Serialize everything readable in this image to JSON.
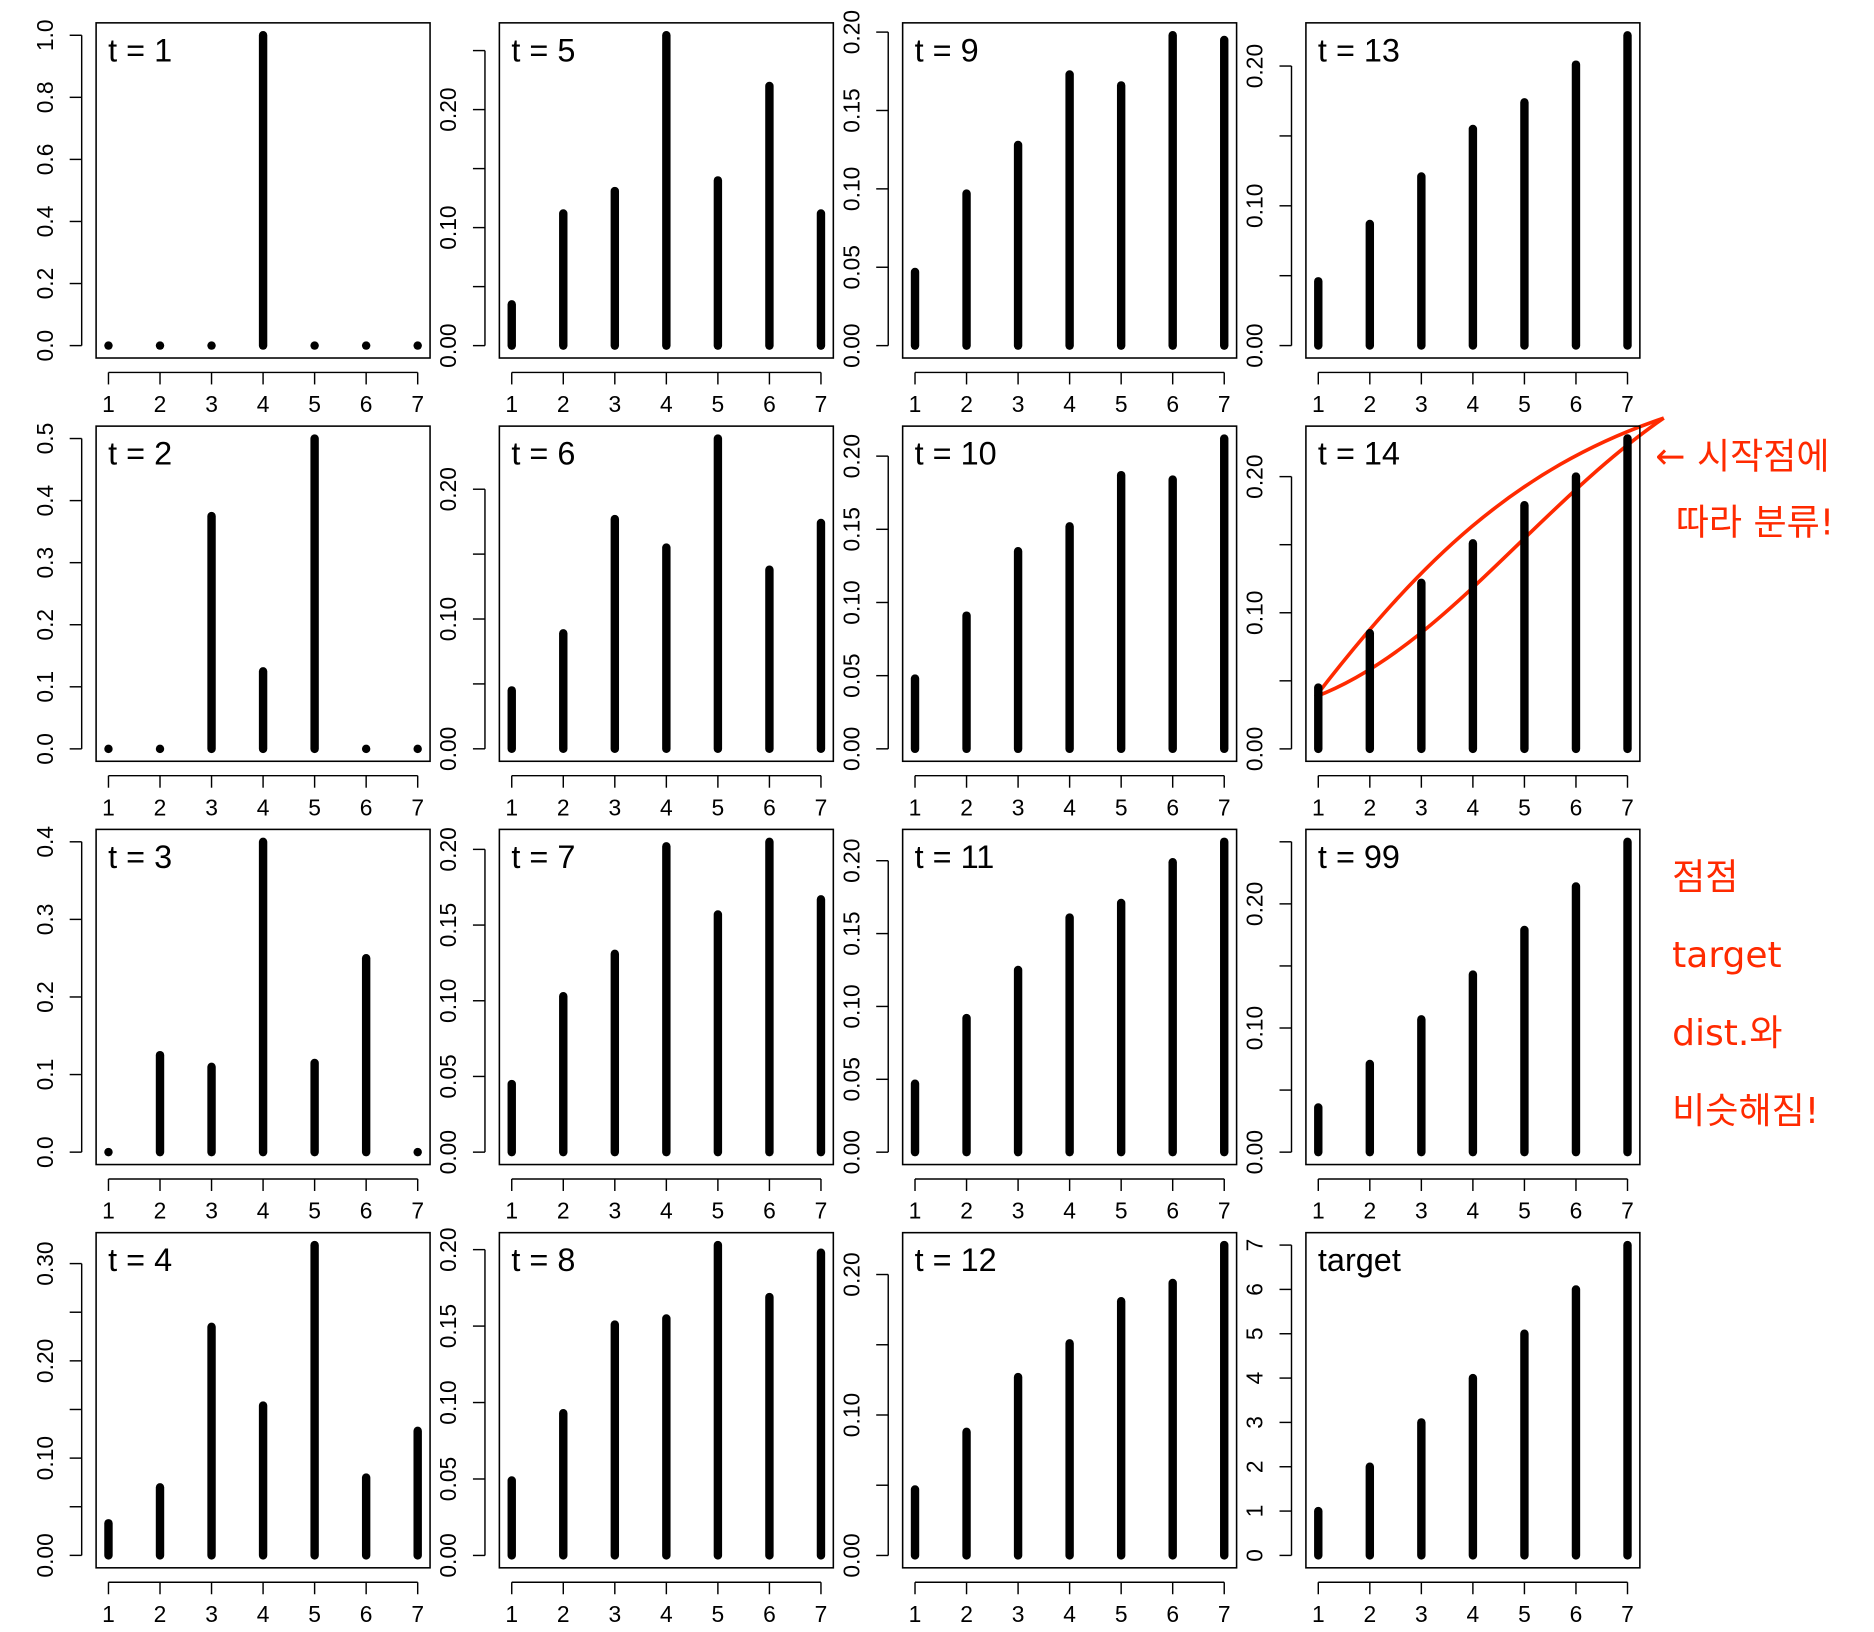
{
  "chart_data": [
    {
      "type": "bar",
      "title": "t = 1",
      "x": [
        1,
        2,
        3,
        4,
        5,
        6,
        7
      ],
      "values": [
        0,
        0,
        0,
        1,
        0,
        0,
        0
      ],
      "color": "#000000",
      "xlim": [
        0.76,
        7.24
      ],
      "xticks": [
        1,
        2,
        3,
        4,
        5,
        6,
        7
      ],
      "ylim": [
        -0.04,
        1.04
      ],
      "yticks": [
        {
          "value": 0,
          "label": "0.0"
        },
        {
          "value": 0.2,
          "label": "0.2"
        },
        {
          "value": 0.4,
          "label": "0.4"
        },
        {
          "value": 0.6,
          "label": "0.6"
        },
        {
          "value": 0.8,
          "label": "0.8"
        },
        {
          "value": 1,
          "label": "1.0"
        }
      ],
      "yminorticks": []
    },
    {
      "type": "bar",
      "title": "t = 2",
      "x": [
        1,
        2,
        3,
        4,
        5,
        6,
        7
      ],
      "values": [
        0,
        0,
        0.375,
        0.125,
        0.5,
        0,
        0
      ],
      "color": "#000000",
      "xlim": [
        0.76,
        7.24
      ],
      "xticks": [
        1,
        2,
        3,
        4,
        5,
        6,
        7
      ],
      "ylim": [
        -0.02,
        0.52
      ],
      "yticks": [
        {
          "value": 0,
          "label": "0.0"
        },
        {
          "value": 0.1,
          "label": "0.1"
        },
        {
          "value": 0.2,
          "label": "0.2"
        },
        {
          "value": 0.3,
          "label": "0.3"
        },
        {
          "value": 0.4,
          "label": "0.4"
        },
        {
          "value": 0.5,
          "label": "0.5"
        }
      ],
      "yminorticks": []
    },
    {
      "type": "bar",
      "title": "t = 3",
      "x": [
        1,
        2,
        3,
        4,
        5,
        6,
        7
      ],
      "values": [
        0,
        0.125,
        0.11,
        0.4,
        0.115,
        0.25,
        0
      ],
      "color": "#000000",
      "xlim": [
        0.76,
        7.24
      ],
      "xticks": [
        1,
        2,
        3,
        4,
        5,
        6,
        7
      ],
      "ylim": [
        -0.016,
        0.416
      ],
      "yticks": [
        {
          "value": 0,
          "label": "0.0"
        },
        {
          "value": 0.1,
          "label": "0.1"
        },
        {
          "value": 0.2,
          "label": "0.2"
        },
        {
          "value": 0.3,
          "label": "0.3"
        },
        {
          "value": 0.4,
          "label": "0.4"
        }
      ],
      "yminorticks": []
    },
    {
      "type": "bar",
      "title": "t = 4",
      "x": [
        1,
        2,
        3,
        4,
        5,
        6,
        7
      ],
      "values": [
        0.033,
        0.07,
        0.235,
        0.154,
        0.319,
        0.08,
        0.128
      ],
      "color": "#000000",
      "xlim": [
        0.76,
        7.24
      ],
      "xticks": [
        1,
        2,
        3,
        4,
        5,
        6,
        7
      ],
      "ylim": [
        -0.0128,
        0.3318
      ],
      "yticks": [
        {
          "value": 0,
          "label": "0.00"
        },
        {
          "value": 0.1,
          "label": "0.10"
        },
        {
          "value": 0.2,
          "label": "0.20"
        },
        {
          "value": 0.3,
          "label": "0.30"
        }
      ],
      "yminorticks": [
        0.05,
        0.15,
        0.25
      ]
    },
    {
      "type": "bar",
      "title": "t = 5",
      "x": [
        1,
        2,
        3,
        4,
        5,
        6,
        7
      ],
      "values": [
        0.035,
        0.112,
        0.131,
        0.263,
        0.14,
        0.22,
        0.112
      ],
      "color": "#000000",
      "xlim": [
        0.76,
        7.24
      ],
      "xticks": [
        1,
        2,
        3,
        4,
        5,
        6,
        7
      ],
      "ylim": [
        -0.0105,
        0.2735
      ],
      "yticks": [
        {
          "value": 0,
          "label": "0.00"
        },
        {
          "value": 0.1,
          "label": "0.10"
        },
        {
          "value": 0.2,
          "label": "0.20"
        }
      ],
      "yminorticks": [
        0.05,
        0.15,
        0.25
      ]
    },
    {
      "type": "bar",
      "title": "t = 6",
      "x": [
        1,
        2,
        3,
        4,
        5,
        6,
        7
      ],
      "values": [
        0.045,
        0.089,
        0.177,
        0.155,
        0.239,
        0.138,
        0.174
      ],
      "color": "#000000",
      "xlim": [
        0.76,
        7.24
      ],
      "xticks": [
        1,
        2,
        3,
        4,
        5,
        6,
        7
      ],
      "ylim": [
        -0.0096,
        0.2486
      ],
      "yticks": [
        {
          "value": 0,
          "label": "0.00"
        },
        {
          "value": 0.1,
          "label": "0.10"
        },
        {
          "value": 0.2,
          "label": "0.20"
        }
      ],
      "yminorticks": [
        0.05,
        0.15
      ]
    },
    {
      "type": "bar",
      "title": "t = 7",
      "x": [
        1,
        2,
        3,
        4,
        5,
        6,
        7
      ],
      "values": [
        0.045,
        0.103,
        0.131,
        0.202,
        0.157,
        0.205,
        0.167
      ],
      "color": "#000000",
      "xlim": [
        0.76,
        7.24
      ],
      "xticks": [
        1,
        2,
        3,
        4,
        5,
        6,
        7
      ],
      "ylim": [
        -0.0082,
        0.2132
      ],
      "yticks": [
        {
          "value": 0,
          "label": "0.00"
        },
        {
          "value": 0.05,
          "label": "0.05"
        },
        {
          "value": 0.1,
          "label": "0.10"
        },
        {
          "value": 0.15,
          "label": "0.15"
        },
        {
          "value": 0.2,
          "label": "0.20"
        }
      ],
      "yminorticks": []
    },
    {
      "type": "bar",
      "title": "t = 8",
      "x": [
        1,
        2,
        3,
        4,
        5,
        6,
        7
      ],
      "values": [
        0.049,
        0.093,
        0.151,
        0.155,
        0.203,
        0.169,
        0.198
      ],
      "color": "#000000",
      "xlim": [
        0.76,
        7.24
      ],
      "xticks": [
        1,
        2,
        3,
        4,
        5,
        6,
        7
      ],
      "ylim": [
        -0.0081,
        0.2111
      ],
      "yticks": [
        {
          "value": 0,
          "label": "0.00"
        },
        {
          "value": 0.05,
          "label": "0.05"
        },
        {
          "value": 0.1,
          "label": "0.10"
        },
        {
          "value": 0.15,
          "label": "0.15"
        },
        {
          "value": 0.2,
          "label": "0.20"
        }
      ],
      "yminorticks": []
    },
    {
      "type": "bar",
      "title": "t = 9",
      "x": [
        1,
        2,
        3,
        4,
        5,
        6,
        7
      ],
      "values": [
        0.047,
        0.097,
        0.128,
        0.173,
        0.166,
        0.198,
        0.195
      ],
      "color": "#000000",
      "xlim": [
        0.76,
        7.24
      ],
      "xticks": [
        1,
        2,
        3,
        4,
        5,
        6,
        7
      ],
      "ylim": [
        -0.0079,
        0.2059
      ],
      "yticks": [
        {
          "value": 0,
          "label": "0.00"
        },
        {
          "value": 0.05,
          "label": "0.05"
        },
        {
          "value": 0.1,
          "label": "0.10"
        },
        {
          "value": 0.15,
          "label": "0.15"
        },
        {
          "value": 0.2,
          "label": "0.20"
        }
      ],
      "yminorticks": []
    },
    {
      "type": "bar",
      "title": "t = 10",
      "x": [
        1,
        2,
        3,
        4,
        5,
        6,
        7
      ],
      "values": [
        0.048,
        0.091,
        0.135,
        0.152,
        0.187,
        0.184,
        0.212
      ],
      "color": "#000000",
      "xlim": [
        0.76,
        7.24
      ],
      "xticks": [
        1,
        2,
        3,
        4,
        5,
        6,
        7
      ],
      "ylim": [
        -0.0085,
        0.2205
      ],
      "yticks": [
        {
          "value": 0,
          "label": "0.00"
        },
        {
          "value": 0.05,
          "label": "0.05"
        },
        {
          "value": 0.1,
          "label": "0.10"
        },
        {
          "value": 0.15,
          "label": "0.15"
        },
        {
          "value": 0.2,
          "label": "0.20"
        }
      ],
      "yminorticks": []
    },
    {
      "type": "bar",
      "title": "t = 11",
      "x": [
        1,
        2,
        3,
        4,
        5,
        6,
        7
      ],
      "values": [
        0.047,
        0.092,
        0.125,
        0.161,
        0.171,
        0.199,
        0.213
      ],
      "color": "#000000",
      "xlim": [
        0.76,
        7.24
      ],
      "xticks": [
        1,
        2,
        3,
        4,
        5,
        6,
        7
      ],
      "ylim": [
        -0.0085,
        0.2215
      ],
      "yticks": [
        {
          "value": 0,
          "label": "0.00"
        },
        {
          "value": 0.05,
          "label": "0.05"
        },
        {
          "value": 0.1,
          "label": "0.10"
        },
        {
          "value": 0.15,
          "label": "0.15"
        },
        {
          "value": 0.2,
          "label": "0.20"
        }
      ],
      "yminorticks": []
    },
    {
      "type": "bar",
      "title": "t = 12",
      "x": [
        1,
        2,
        3,
        4,
        5,
        6,
        7
      ],
      "values": [
        0.047,
        0.088,
        0.127,
        0.151,
        0.181,
        0.194,
        0.221
      ],
      "color": "#000000",
      "xlim": [
        0.76,
        7.24
      ],
      "xticks": [
        1,
        2,
        3,
        4,
        5,
        6,
        7
      ],
      "ylim": [
        -0.0088,
        0.2298
      ],
      "yticks": [
        {
          "value": 0,
          "label": "0.00"
        },
        {
          "value": 0.1,
          "label": "0.10"
        },
        {
          "value": 0.2,
          "label": "0.20"
        }
      ],
      "yminorticks": [
        0.05,
        0.15
      ]
    },
    {
      "type": "bar",
      "title": "t = 13",
      "x": [
        1,
        2,
        3,
        4,
        5,
        6,
        7
      ],
      "values": [
        0.046,
        0.087,
        0.121,
        0.155,
        0.174,
        0.201,
        0.222
      ],
      "color": "#000000",
      "xlim": [
        0.76,
        7.24
      ],
      "xticks": [
        1,
        2,
        3,
        4,
        5,
        6,
        7
      ],
      "ylim": [
        -0.0089,
        0.2309
      ],
      "yticks": [
        {
          "value": 0,
          "label": "0.00"
        },
        {
          "value": 0.1,
          "label": "0.10"
        },
        {
          "value": 0.2,
          "label": "0.20"
        }
      ],
      "yminorticks": [
        0.05,
        0.15
      ]
    },
    {
      "type": "bar",
      "title": "t = 14",
      "x": [
        1,
        2,
        3,
        4,
        5,
        6,
        7
      ],
      "values": [
        0.045,
        0.085,
        0.122,
        0.151,
        0.179,
        0.2,
        0.228
      ],
      "color": "#000000",
      "xlim": [
        0.76,
        7.24
      ],
      "xticks": [
        1,
        2,
        3,
        4,
        5,
        6,
        7
      ],
      "ylim": [
        -0.0091,
        0.2371
      ],
      "yticks": [
        {
          "value": 0,
          "label": "0.00"
        },
        {
          "value": 0.1,
          "label": "0.10"
        },
        {
          "value": 0.2,
          "label": "0.20"
        }
      ],
      "yminorticks": [
        0.05,
        0.15
      ]
    },
    {
      "type": "bar",
      "title": "t = 99",
      "x": [
        1,
        2,
        3,
        4,
        5,
        6,
        7
      ],
      "values": [
        0.036,
        0.071,
        0.107,
        0.143,
        0.179,
        0.214,
        0.25
      ],
      "color": "#000000",
      "xlim": [
        0.76,
        7.24
      ],
      "xticks": [
        1,
        2,
        3,
        4,
        5,
        6,
        7
      ],
      "ylim": [
        -0.01,
        0.26
      ],
      "yticks": [
        {
          "value": 0,
          "label": "0.00"
        },
        {
          "value": 0.1,
          "label": "0.10"
        },
        {
          "value": 0.2,
          "label": "0.20"
        }
      ],
      "yminorticks": [
        0.05,
        0.15,
        0.25
      ]
    },
    {
      "type": "bar",
      "title": "target",
      "x": [
        1,
        2,
        3,
        4,
        5,
        6,
        7
      ],
      "values": [
        1,
        2,
        3,
        4,
        5,
        6,
        7
      ],
      "color": "#000000",
      "xlim": [
        0.76,
        7.24
      ],
      "xticks": [
        1,
        2,
        3,
        4,
        5,
        6,
        7
      ],
      "ylim": [
        -0.28,
        7.28
      ],
      "yticks": [
        0,
        1,
        2,
        3,
        4,
        5,
        6,
        7
      ],
      "yminorticks": []
    }
  ],
  "annotations": {
    "note_1": [
      "← 시작점에",
      "따라 분류!"
    ],
    "note_2": [
      "점점",
      "target",
      "dist.와",
      "비슷해짐!"
    ]
  }
}
